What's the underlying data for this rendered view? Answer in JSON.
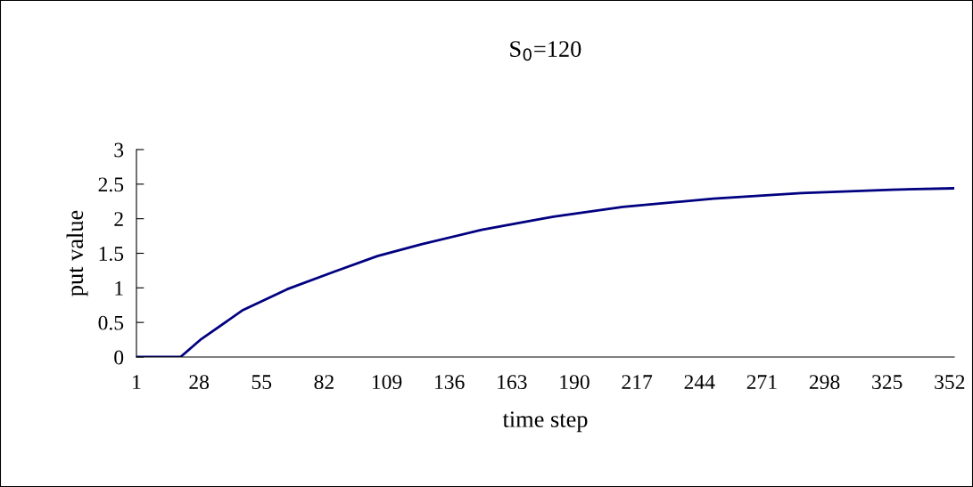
{
  "chart_data": {
    "type": "line",
    "title": "S$_{0}$=120",
    "xlabel": "time step",
    "ylabel": "put value",
    "x": [
      1,
      20,
      29,
      47,
      66,
      86,
      105,
      124,
      150,
      173,
      181,
      211,
      250,
      288,
      327,
      354
    ],
    "series": [
      {
        "color": "#000080",
        "values": [
          0,
          0,
          0.26,
          0.68,
          0.98,
          1.23,
          1.46,
          1.63,
          1.84,
          1.98,
          2.03,
          2.17,
          2.29,
          2.37,
          2.42,
          2.44
        ]
      }
    ],
    "xlim": [
      1,
      354
    ],
    "xticks": [
      1,
      28,
      55,
      82,
      109,
      136,
      163,
      190,
      217,
      244,
      271,
      298,
      325,
      352
    ],
    "ylim": [
      0,
      3
    ],
    "yticks": [
      0,
      0.5,
      1,
      1.5,
      2,
      2.5,
      3
    ],
    "grid": false,
    "legend": false,
    "marker": "none",
    "line_style": "solid"
  }
}
